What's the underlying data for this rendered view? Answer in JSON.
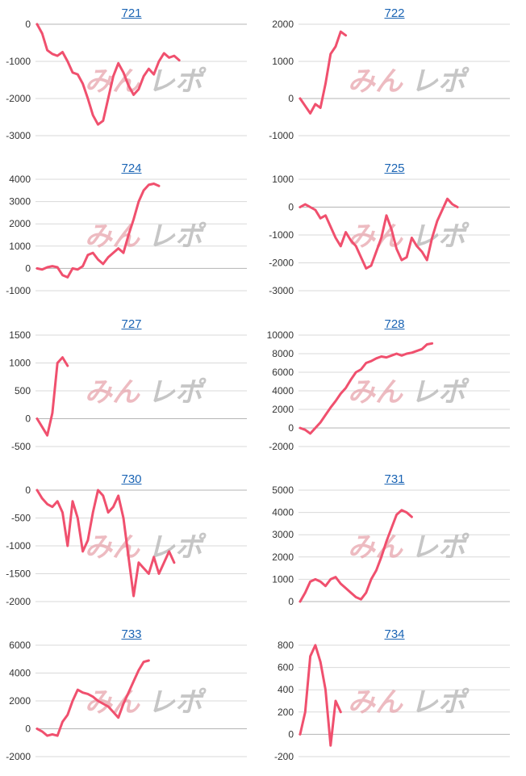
{
  "chart_data": [
    {
      "type": "line",
      "title": "721",
      "yticks": [
        0,
        -1000,
        -2000,
        -3000
      ],
      "ylim": [
        -3000,
        0
      ],
      "x_len": 42,
      "color": "#f0506e",
      "y": [
        0,
        -250,
        -700,
        -800,
        -850,
        -750,
        -1000,
        -1300,
        -1350,
        -1600,
        -2000,
        -2450,
        -2700,
        -2600,
        -2000,
        -1400,
        -1050,
        -1300,
        -1650,
        -1900,
        -1750,
        -1400,
        -1200,
        -1350,
        -1000,
        -780,
        -900,
        -850,
        -970
      ]
    },
    {
      "type": "line",
      "title": "722",
      "yticks": [
        2000,
        1000,
        0,
        -1000
      ],
      "ylim": [
        -1000,
        2000
      ],
      "x_len": 42,
      "color": "#f0506e",
      "y": [
        0,
        -200,
        -400,
        -150,
        -250,
        400,
        1200,
        1400,
        1800,
        1700
      ]
    },
    {
      "type": "line",
      "title": "724",
      "yticks": [
        4000,
        3000,
        2000,
        1000,
        0,
        -1000
      ],
      "ylim": [
        -1000,
        4000
      ],
      "x_len": 42,
      "color": "#f0506e",
      "y": [
        0,
        -50,
        50,
        100,
        50,
        -300,
        -400,
        0,
        -50,
        100,
        600,
        700,
        400,
        200,
        500,
        700,
        900,
        700,
        1500,
        2200,
        3000,
        3500,
        3750,
        3800,
        3700
      ]
    },
    {
      "type": "line",
      "title": "725",
      "yticks": [
        1000,
        0,
        -1000,
        -2000,
        -3000
      ],
      "ylim": [
        -3000,
        1000
      ],
      "x_len": 42,
      "color": "#f0506e",
      "y": [
        0,
        100,
        0,
        -100,
        -400,
        -300,
        -700,
        -1100,
        -1400,
        -900,
        -1200,
        -1400,
        -1800,
        -2200,
        -2100,
        -1600,
        -1100,
        -300,
        -800,
        -1500,
        -1900,
        -1800,
        -1100,
        -1400,
        -1600,
        -1900,
        -1100,
        -500,
        -100,
        300,
        100,
        0
      ]
    },
    {
      "type": "line",
      "title": "727",
      "yticks": [
        1500,
        1000,
        500,
        0,
        -500
      ],
      "ylim": [
        -500,
        1500
      ],
      "x_len": 42,
      "color": "#f0506e",
      "y": [
        0,
        -150,
        -300,
        100,
        1000,
        1100,
        950
      ]
    },
    {
      "type": "line",
      "title": "728",
      "yticks": [
        10000,
        8000,
        6000,
        4000,
        2000,
        0,
        -2000
      ],
      "ylim": [
        -2000,
        10000
      ],
      "x_len": 42,
      "color": "#f0506e",
      "y": [
        0,
        -200,
        -600,
        0,
        600,
        1400,
        2200,
        2900,
        3700,
        4300,
        5200,
        6000,
        6300,
        7000,
        7200,
        7500,
        7700,
        7600,
        7800,
        8000,
        7800,
        8000,
        8100,
        8300,
        8500,
        9000,
        9100
      ]
    },
    {
      "type": "line",
      "title": "730",
      "yticks": [
        0,
        -500,
        -1000,
        -1500,
        -2000
      ],
      "ylim": [
        -2000,
        0
      ],
      "x_len": 42,
      "color": "#f0506e",
      "y": [
        0,
        -150,
        -250,
        -300,
        -200,
        -400,
        -1000,
        -200,
        -500,
        -1100,
        -900,
        -400,
        0,
        -100,
        -400,
        -300,
        -100,
        -500,
        -1200,
        -1900,
        -1300,
        -1400,
        -1500,
        -1200,
        -1500,
        -1300,
        -1100,
        -1300
      ]
    },
    {
      "type": "line",
      "title": "731",
      "yticks": [
        5000,
        4000,
        3000,
        2000,
        1000,
        0
      ],
      "ylim": [
        0,
        5000
      ],
      "x_len": 42,
      "color": "#f0506e",
      "y": [
        0,
        400,
        900,
        1000,
        900,
        700,
        1000,
        1100,
        800,
        600,
        400,
        200,
        100,
        400,
        1000,
        1400,
        2000,
        2700,
        3300,
        3900,
        4100,
        4000,
        3800
      ]
    },
    {
      "type": "line",
      "title": "733",
      "yticks": [
        6000,
        4000,
        2000,
        0,
        -2000
      ],
      "ylim": [
        -2000,
        6000
      ],
      "x_len": 42,
      "color": "#f0506e",
      "y": [
        0,
        -200,
        -500,
        -400,
        -500,
        500,
        1000,
        2000,
        2800,
        2600,
        2500,
        2300,
        2000,
        1800,
        1600,
        1200,
        800,
        1800,
        2600,
        3400,
        4200,
        4800,
        4900
      ]
    },
    {
      "type": "line",
      "title": "734",
      "yticks": [
        800,
        600,
        400,
        200,
        0,
        -200
      ],
      "ylim": [
        -200,
        800
      ],
      "x_len": 42,
      "color": "#f0506e",
      "y": [
        0,
        200,
        700,
        800,
        650,
        400,
        -100,
        300,
        200
      ]
    }
  ],
  "watermark": {
    "part1": "みんレポ",
    "part2": "レポ"
  }
}
